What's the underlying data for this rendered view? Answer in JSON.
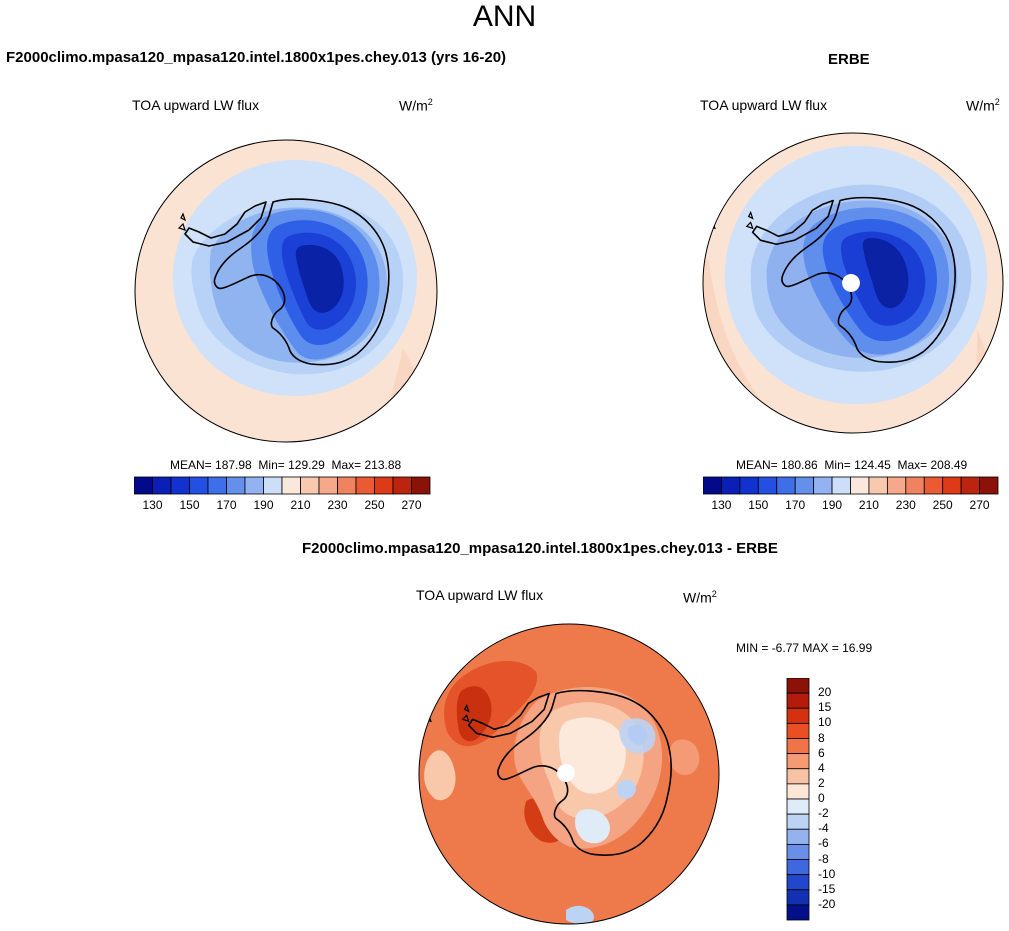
{
  "header": {
    "season": "ANN"
  },
  "panels": {
    "model": {
      "case_title": "F2000climo.mpasa120_mpasa120.intel.1800x1pes.chey.013 (yrs 16-20)",
      "variable": "TOA upward LW flux",
      "units_base": "W/m",
      "units_exp": "2",
      "stats": {
        "mean_label": "MEAN=",
        "mean": "187.98",
        "min_label": "Min=",
        "min": "129.29",
        "max_label": "Max=",
        "max": "213.88"
      }
    },
    "obs": {
      "case_title": "ERBE",
      "variable": "TOA upward LW flux",
      "units_base": "W/m",
      "units_exp": "2",
      "stats": {
        "mean_label": "MEAN=",
        "mean": "180.86",
        "min_label": "Min=",
        "min": "124.45",
        "max_label": "Max=",
        "max": "208.49"
      }
    },
    "diff": {
      "case_title": "F2000climo.mpasa120_mpasa120.intel.1800x1pes.chey.013 - ERBE",
      "variable": "TOA upward LW flux",
      "units_base": "W/m",
      "units_exp": "2",
      "stats": {
        "min_label": "MIN =",
        "min": "-6.77",
        "max_label": "MAX =",
        "max": "16.99"
      }
    }
  },
  "colorbars": {
    "abs": {
      "colors": [
        "#020a8a",
        "#0b1fb6",
        "#1232cf",
        "#2350e3",
        "#3f6fe8",
        "#6490ec",
        "#93b2f1",
        "#cddff8",
        "#fbe8dc",
        "#f8c9af",
        "#f5a88a",
        "#f0835f",
        "#ea5a33",
        "#dd3a18",
        "#bb240f",
        "#8a1209"
      ],
      "tick_labels": [
        "130",
        "150",
        "170",
        "190",
        "210",
        "230",
        "250",
        "270"
      ]
    },
    "diff": {
      "colors": [
        "#8a1209",
        "#b31c0d",
        "#d4310f",
        "#ea4f24",
        "#f07447",
        "#f49a74",
        "#f8c2a4",
        "#fce6d6",
        "#e0ebf8",
        "#bdd3f4",
        "#94b3ee",
        "#6a8fe8",
        "#3f67df",
        "#2047cc",
        "#1231b2",
        "#041089"
      ],
      "tick_labels": [
        "20",
        "15",
        "10",
        "8",
        "6",
        "4",
        "2",
        "0",
        "-2",
        "-4",
        "-6",
        "-8",
        "-10",
        "-15",
        "-20"
      ]
    }
  },
  "map_fill": {
    "model": {
      "ocean_outer": "#fbe3d3",
      "rings": [
        "#cfe2f9",
        "#b7d2f6",
        "#90b4f0",
        "#5d8ded",
        "#2f5fe6",
        "#1a40d6",
        "#0a22a5"
      ]
    },
    "obs": {
      "ocean_outer": "#fbe3d3",
      "rings": [
        "#cfe2f9",
        "#b2cdf5",
        "#8fb1f0",
        "#5f8eec",
        "#3061e6",
        "#1a3ed4",
        "#0a22a3"
      ],
      "missing_fill": "#ffffff"
    },
    "diff": {
      "base": "#ee7a4c",
      "patches": [
        "#f9c7a9",
        "#fde9dc",
        "#d9e6f8",
        "#f4a482",
        "#cf3511",
        "#e0ebf8"
      ],
      "missing_fill": "#ffffff"
    }
  }
}
